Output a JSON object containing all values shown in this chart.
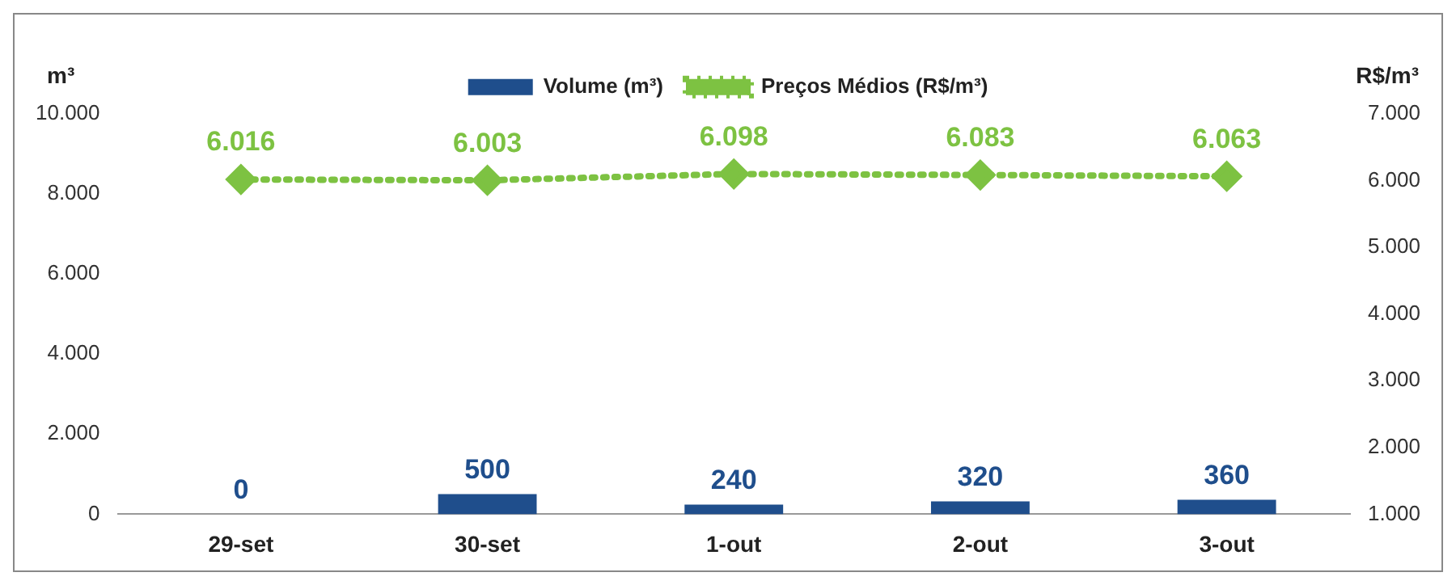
{
  "chart_data": {
    "type": "bar",
    "categories": [
      "29-set",
      "30-set",
      "1-out",
      "2-out",
      "3-out"
    ],
    "series": [
      {
        "name": "Volume (m³)",
        "color": "#1f4e8c",
        "values": [
          0,
          500,
          240,
          320,
          360
        ],
        "value_labels": [
          "0",
          "500",
          "240",
          "320",
          "360"
        ]
      },
      {
        "name": "Preços Médios (R$/m³)",
        "type": "line",
        "axis": "y2",
        "color": "#7dc242",
        "values": [
          6016,
          6003,
          6098,
          6083,
          6063
        ],
        "value_labels": [
          "6.016",
          "6.003",
          "6.098",
          "6.083",
          "6.063"
        ]
      }
    ],
    "ylabel": "m³",
    "y2label": "R$/m³",
    "ylim": [
      0,
      10000
    ],
    "yticks": [
      0,
      {
        "value": 2000,
        "label": "2.000"
      },
      {
        "value": 4000,
        "label": "4.000"
      },
      {
        "value": 6000,
        "label": "6.000"
      },
      {
        "value": 8000,
        "label": "8.000"
      },
      {
        "value": 10000,
        "label": "10.000"
      }
    ],
    "y2lim": [
      1000,
      7000
    ],
    "y2ticks": [
      {
        "value": 1000,
        "label": "1.000"
      },
      {
        "value": 2000,
        "label": "2.000"
      },
      {
        "value": 3000,
        "label": "3.000"
      },
      {
        "value": 4000,
        "label": "4.000"
      },
      {
        "value": 5000,
        "label": "5.000"
      },
      {
        "value": 6000,
        "label": "6.000"
      },
      {
        "value": 7000,
        "label": "7.000"
      }
    ],
    "grid": false,
    "legend": "top",
    "marker": "diamond",
    "line_style": "dotted"
  }
}
